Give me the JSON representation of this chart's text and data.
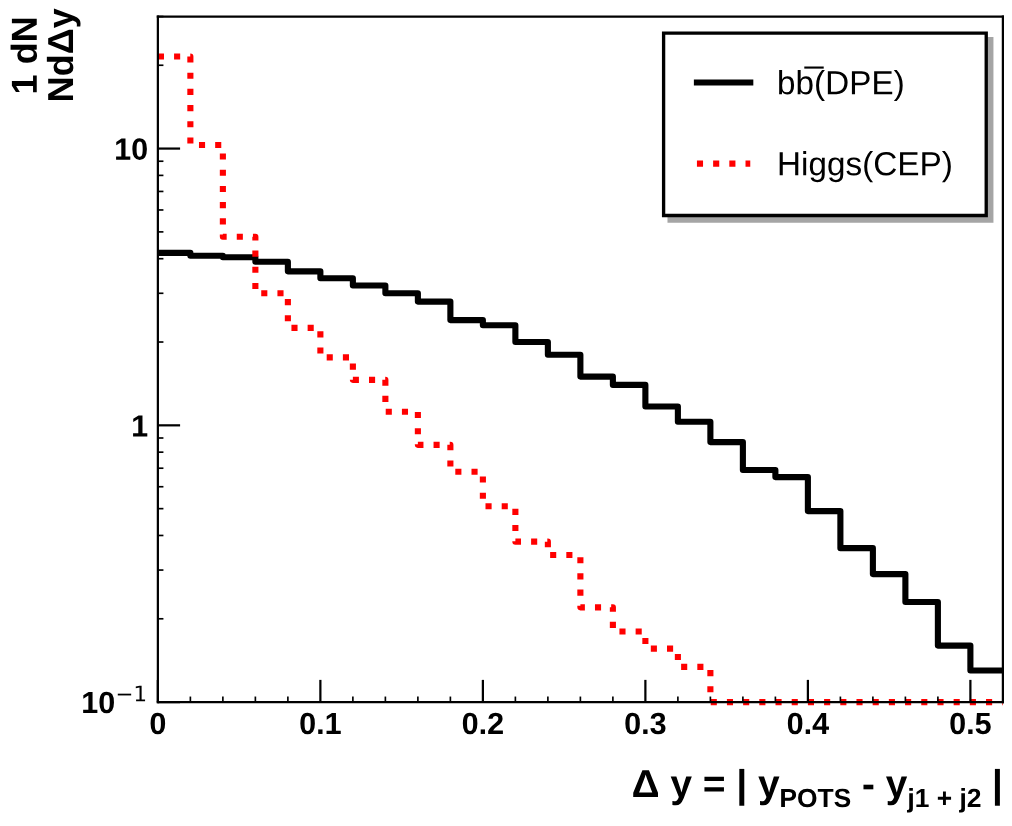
{
  "chart_data": {
    "type": "histogram",
    "ylabel": "1 dN\nNdΔy",
    "xlabel": "Δ y = | y$_{POTS}$ - y$_{j1 + j2}$ |",
    "bins": [
      0,
      0.02,
      0.04,
      0.06,
      0.08,
      0.1,
      0.12,
      0.14,
      0.16,
      0.18,
      0.2,
      0.22,
      0.24,
      0.26,
      0.28,
      0.3,
      0.32,
      0.34,
      0.36,
      0.38,
      0.4,
      0.42,
      0.44,
      0.46,
      0.48,
      0.5,
      0.52
    ],
    "series": [
      {
        "name": "bb̅(DPE)",
        "color": "#000000",
        "line_style": "solid",
        "values": [
          4.2,
          4.1,
          4.05,
          3.9,
          3.6,
          3.4,
          3.2,
          3.0,
          2.8,
          2.4,
          2.3,
          2.0,
          1.8,
          1.5,
          1.4,
          1.17,
          1.03,
          0.87,
          0.69,
          0.65,
          0.49,
          0.36,
          0.29,
          0.23,
          0.16,
          0.13
        ]
      },
      {
        "name": "Higgs(CEP)",
        "color": "#ff0000",
        "line_style": "dotted",
        "values": [
          21.5,
          10.3,
          4.8,
          3.0,
          2.25,
          1.76,
          1.46,
          1.12,
          0.85,
          0.68,
          0.51,
          0.38,
          0.34,
          0.22,
          0.18,
          0.156,
          0.134,
          0.1,
          0.1,
          0.1,
          0.1,
          0.1,
          0.1,
          0.1,
          0.1,
          0.1
        ]
      }
    ],
    "log": "y",
    "xlim": [
      0,
      0.52
    ],
    "ylim": [
      0.1,
      30
    ],
    "xticks": [
      0,
      0.1,
      0.2,
      0.3,
      0.4,
      0.5
    ],
    "yticks": [
      {
        "value": 0.1,
        "label": "10$^{−1}$"
      },
      1,
      10
    ],
    "grid": false,
    "legend": "top right"
  }
}
